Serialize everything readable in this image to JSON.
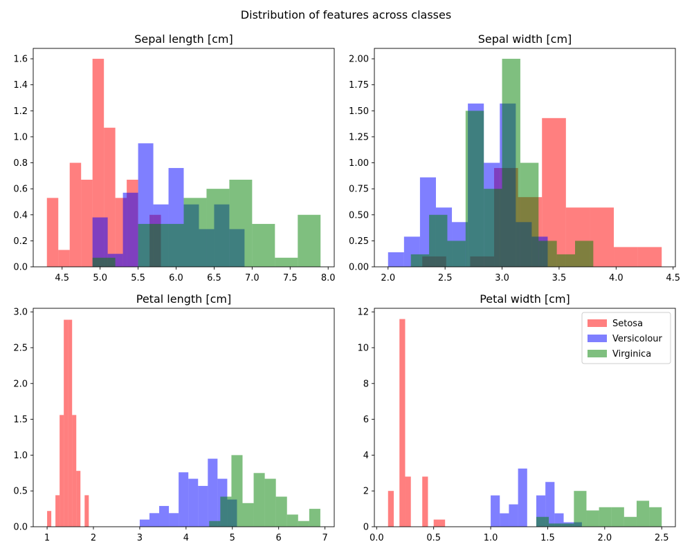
{
  "figure": {
    "title": "Distribution of features across classes"
  },
  "colors": {
    "Setosa": "#ff0000",
    "Versicolour": "#0000ff",
    "Virginica": "#008000"
  },
  "chart_data": [
    {
      "type": "histogram",
      "title": "Sepal length [cm]",
      "xlim": [
        4.12,
        8.08
      ],
      "ylim": [
        0,
        1.68
      ],
      "xticks": [
        4.5,
        5.0,
        5.5,
        6.0,
        6.5,
        7.0,
        7.5,
        8.0
      ],
      "xtick_labels": [
        "4.5",
        "5.0",
        "5.5",
        "6.0",
        "6.5",
        "7.0",
        "7.5",
        "8.0"
      ],
      "yticks": [
        0.0,
        0.2,
        0.4,
        0.6,
        0.8,
        1.0,
        1.2,
        1.4,
        1.6
      ],
      "ytick_labels": [
        "0.0",
        "0.2",
        "0.4",
        "0.6",
        "0.8",
        "1.0",
        "1.2",
        "1.4",
        "1.6"
      ],
      "series": [
        {
          "name": "Setosa",
          "bins": [
            [
              4.3,
              4.45,
              0.53
            ],
            [
              4.45,
              4.6,
              0.13
            ],
            [
              4.6,
              4.75,
              0.8
            ],
            [
              4.75,
              4.9,
              0.67
            ],
            [
              4.9,
              5.05,
              1.6
            ],
            [
              5.05,
              5.2,
              1.07
            ],
            [
              5.2,
              5.35,
              0.53
            ],
            [
              5.35,
              5.5,
              0.67
            ],
            [
              5.5,
              5.65,
              0.0
            ],
            [
              5.65,
              5.8,
              0.4
            ]
          ]
        },
        {
          "name": "Versicolour",
          "bins": [
            [
              4.9,
              5.1,
              0.38
            ],
            [
              5.1,
              5.3,
              0.1
            ],
            [
              5.3,
              5.5,
              0.57
            ],
            [
              5.5,
              5.7,
              0.95
            ],
            [
              5.7,
              5.9,
              0.48
            ],
            [
              5.9,
              6.1,
              0.76
            ],
            [
              6.1,
              6.3,
              0.48
            ],
            [
              6.3,
              6.5,
              0.29
            ],
            [
              6.5,
              6.7,
              0.48
            ],
            [
              6.7,
              6.9,
              0.29
            ],
            [
              6.9,
              7.0,
              0.0
            ]
          ]
        },
        {
          "name": "Virginica",
          "bins": [
            [
              4.9,
              5.2,
              0.07
            ],
            [
              5.2,
              5.5,
              0.0
            ],
            [
              5.5,
              5.8,
              0.33
            ],
            [
              5.8,
              6.1,
              0.33
            ],
            [
              6.1,
              6.4,
              0.53
            ],
            [
              6.4,
              6.7,
              0.6
            ],
            [
              6.7,
              7.0,
              0.67
            ],
            [
              7.0,
              7.3,
              0.33
            ],
            [
              7.3,
              7.6,
              0.07
            ],
            [
              7.6,
              7.9,
              0.4
            ]
          ]
        }
      ]
    },
    {
      "type": "histogram",
      "title": "Sepal width [cm]",
      "xlim": [
        1.88,
        4.52
      ],
      "ylim": [
        0,
        2.1
      ],
      "xticks": [
        2.0,
        2.5,
        3.0,
        3.5,
        4.0,
        4.5
      ],
      "xtick_labels": [
        "2.0",
        "2.5",
        "3.0",
        "3.5",
        "4.0",
        "4.5"
      ],
      "yticks": [
        0.0,
        0.25,
        0.5,
        0.75,
        1.0,
        1.25,
        1.5,
        1.75,
        2.0
      ],
      "ytick_labels": [
        "0.00",
        "0.25",
        "0.50",
        "0.75",
        "1.00",
        "1.25",
        "1.50",
        "1.75",
        "2.00"
      ],
      "series": [
        {
          "name": "Setosa",
          "bins": [
            [
              2.3,
              2.51,
              0.1
            ],
            [
              2.51,
              2.72,
              0.0
            ],
            [
              2.72,
              2.93,
              0.1
            ],
            [
              2.93,
              3.14,
              0.95
            ],
            [
              3.14,
              3.35,
              0.67
            ],
            [
              3.35,
              3.56,
              1.43
            ],
            [
              3.56,
              3.77,
              0.57
            ],
            [
              3.77,
              3.98,
              0.57
            ],
            [
              3.98,
              4.19,
              0.19
            ],
            [
              4.19,
              4.4,
              0.19
            ]
          ]
        },
        {
          "name": "Versicolour",
          "bins": [
            [
              2.0,
              2.14,
              0.14
            ],
            [
              2.14,
              2.28,
              0.29
            ],
            [
              2.28,
              2.42,
              0.86
            ],
            [
              2.42,
              2.56,
              0.57
            ],
            [
              2.56,
              2.7,
              0.43
            ],
            [
              2.7,
              2.84,
              1.57
            ],
            [
              2.84,
              2.98,
              1.0
            ],
            [
              2.98,
              3.12,
              1.57
            ],
            [
              3.12,
              3.26,
              0.43
            ],
            [
              3.26,
              3.4,
              0.29
            ]
          ]
        },
        {
          "name": "Virginica",
          "bins": [
            [
              2.2,
              2.36,
              0.12
            ],
            [
              2.36,
              2.52,
              0.5
            ],
            [
              2.52,
              2.68,
              0.25
            ],
            [
              2.68,
              2.84,
              1.5
            ],
            [
              2.84,
              3.0,
              0.75
            ],
            [
              3.0,
              3.16,
              2.0
            ],
            [
              3.16,
              3.32,
              1.0
            ],
            [
              3.32,
              3.48,
              0.25
            ],
            [
              3.48,
              3.64,
              0.12
            ],
            [
              3.64,
              3.8,
              0.25
            ]
          ]
        }
      ]
    },
    {
      "type": "histogram",
      "title": "Petal length [cm]",
      "xlim": [
        0.7,
        7.2
      ],
      "ylim": [
        0,
        3.05
      ],
      "xticks": [
        1,
        2,
        3,
        4,
        5,
        6,
        7
      ],
      "xtick_labels": [
        "1",
        "2",
        "3",
        "4",
        "5",
        "6",
        "7"
      ],
      "yticks": [
        0.0,
        0.5,
        1.0,
        1.5,
        2.0,
        2.5,
        3.0
      ],
      "ytick_labels": [
        "0.0",
        "0.5",
        "1.0",
        "1.5",
        "2.0",
        "2.5",
        "3.0"
      ],
      "series": [
        {
          "name": "Setosa",
          "bins": [
            [
              1.0,
              1.09,
              0.22
            ],
            [
              1.09,
              1.18,
              0.0
            ],
            [
              1.18,
              1.27,
              0.44
            ],
            [
              1.27,
              1.36,
              1.56
            ],
            [
              1.36,
              1.45,
              2.89
            ],
            [
              1.45,
              1.54,
              2.89
            ],
            [
              1.54,
              1.63,
              1.56
            ],
            [
              1.63,
              1.72,
              0.78
            ],
            [
              1.72,
              1.81,
              0.0
            ],
            [
              1.81,
              1.9,
              0.44
            ]
          ]
        },
        {
          "name": "Versicolour",
          "bins": [
            [
              3.0,
              3.21,
              0.1
            ],
            [
              3.21,
              3.42,
              0.19
            ],
            [
              3.42,
              3.63,
              0.29
            ],
            [
              3.63,
              3.84,
              0.19
            ],
            [
              3.84,
              4.05,
              0.76
            ],
            [
              4.05,
              4.26,
              0.67
            ],
            [
              4.26,
              4.47,
              0.57
            ],
            [
              4.47,
              4.68,
              0.95
            ],
            [
              4.68,
              4.89,
              0.67
            ],
            [
              4.89,
              5.1,
              0.38
            ]
          ]
        },
        {
          "name": "Virginica",
          "bins": [
            [
              4.5,
              4.74,
              0.08
            ],
            [
              4.74,
              4.98,
              0.42
            ],
            [
              4.98,
              5.22,
              1.0
            ],
            [
              5.22,
              5.46,
              0.33
            ],
            [
              5.46,
              5.7,
              0.75
            ],
            [
              5.7,
              5.94,
              0.67
            ],
            [
              5.94,
              6.18,
              0.42
            ],
            [
              6.18,
              6.42,
              0.17
            ],
            [
              6.42,
              6.66,
              0.08
            ],
            [
              6.66,
              6.9,
              0.25
            ]
          ]
        }
      ]
    },
    {
      "type": "histogram",
      "title": "Petal width [cm]",
      "xlim": [
        -0.02,
        2.62
      ],
      "ylim": [
        0,
        12.2
      ],
      "xticks": [
        0.0,
        0.5,
        1.0,
        1.5,
        2.0,
        2.5
      ],
      "xtick_labels": [
        "0.0",
        "0.5",
        "1.0",
        "1.5",
        "2.0",
        "2.5"
      ],
      "yticks": [
        0,
        2,
        4,
        6,
        8,
        10,
        12
      ],
      "ytick_labels": [
        "0",
        "2",
        "4",
        "6",
        "8",
        "10",
        "12"
      ],
      "legend": {
        "position": "upper right",
        "entries": [
          "Setosa",
          "Versicolour",
          "Virginica"
        ]
      },
      "series": [
        {
          "name": "Setosa",
          "bins": [
            [
              0.1,
              0.15,
              2.0
            ],
            [
              0.15,
              0.2,
              0.0
            ],
            [
              0.2,
              0.25,
              11.6
            ],
            [
              0.25,
              0.3,
              2.8
            ],
            [
              0.3,
              0.35,
              0.0
            ],
            [
              0.35,
              0.4,
              0.0
            ],
            [
              0.4,
              0.45,
              2.8
            ],
            [
              0.45,
              0.5,
              0.0
            ],
            [
              0.5,
              0.55,
              0.4
            ],
            [
              0.55,
              0.6,
              0.4
            ]
          ]
        },
        {
          "name": "Versicolour",
          "bins": [
            [
              1.0,
              1.08,
              1.75
            ],
            [
              1.08,
              1.16,
              0.75
            ],
            [
              1.16,
              1.24,
              1.25
            ],
            [
              1.24,
              1.32,
              3.25
            ],
            [
              1.32,
              1.4,
              0.0
            ],
            [
              1.4,
              1.48,
              1.75
            ],
            [
              1.48,
              1.56,
              2.5
            ],
            [
              1.56,
              1.64,
              0.75
            ],
            [
              1.64,
              1.72,
              0.25
            ],
            [
              1.72,
              1.8,
              0.25
            ]
          ]
        },
        {
          "name": "Virginica",
          "bins": [
            [
              1.4,
              1.51,
              0.55
            ],
            [
              1.51,
              1.62,
              0.18
            ],
            [
              1.62,
              1.73,
              0.18
            ],
            [
              1.73,
              1.84,
              2.0
            ],
            [
              1.84,
              1.95,
              0.91
            ],
            [
              1.95,
              2.06,
              1.09
            ],
            [
              2.06,
              2.17,
              1.09
            ],
            [
              2.17,
              2.28,
              0.55
            ],
            [
              2.28,
              2.39,
              1.45
            ],
            [
              2.39,
              2.5,
              1.09
            ]
          ]
        }
      ]
    }
  ]
}
